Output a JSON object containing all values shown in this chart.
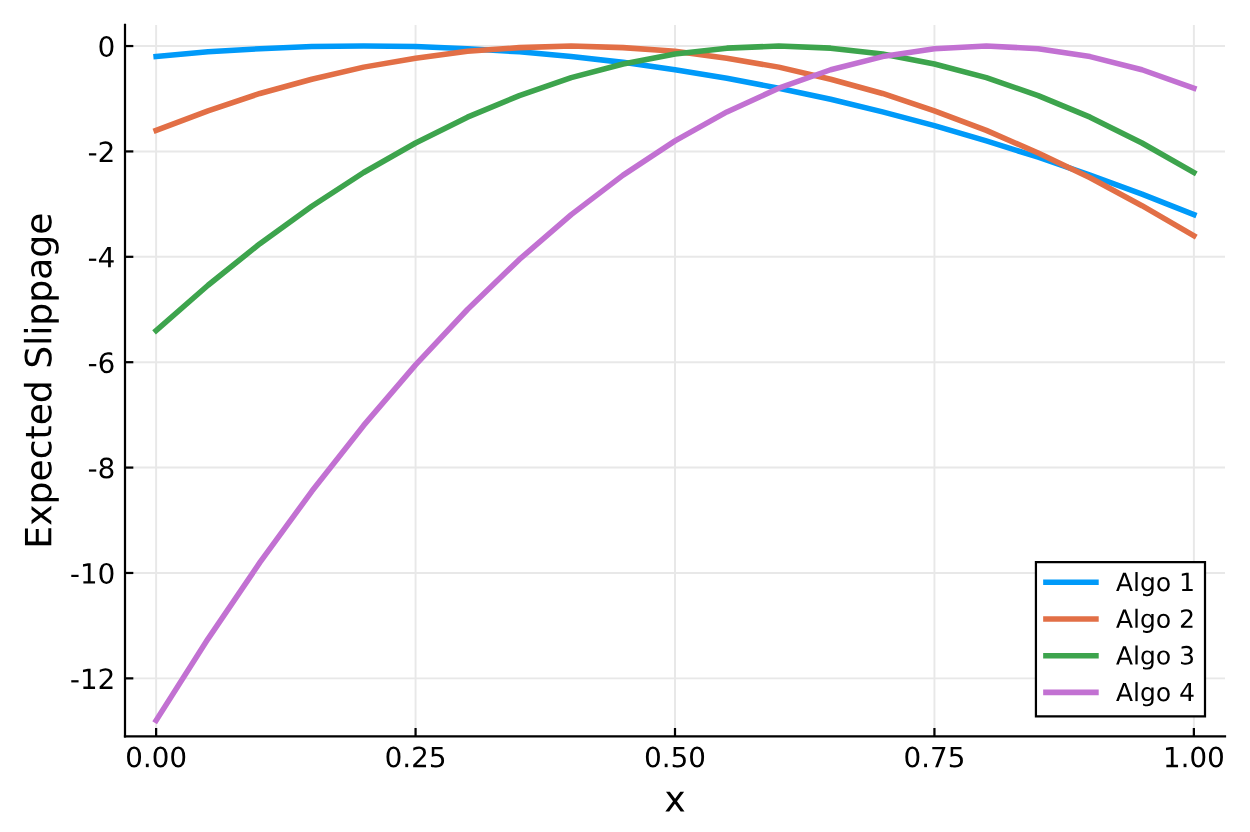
{
  "chart_data": {
    "type": "line",
    "xlabel": "x",
    "ylabel": "Expected Slippage",
    "x": [
      0,
      0.05,
      0.1,
      0.15,
      0.2,
      0.25,
      0.3,
      0.35,
      0.4,
      0.45,
      0.5,
      0.55,
      0.6,
      0.65,
      0.7,
      0.75,
      0.8,
      0.85,
      0.9,
      0.95,
      1
    ],
    "series": [
      {
        "name": "Algo 1",
        "color": "#009af9",
        "values": [
          -0.2,
          -0.11,
          -0.05,
          -0.01,
          0,
          -0.01,
          -0.05,
          -0.11,
          -0.2,
          -0.31,
          -0.45,
          -0.61,
          -0.8,
          -1.01,
          -1.25,
          -1.51,
          -1.8,
          -2.11,
          -2.45,
          -2.81,
          -3.2
        ]
      },
      {
        "name": "Algo 2",
        "color": "#e26f46",
        "values": [
          -1.6,
          -1.23,
          -0.9,
          -0.63,
          -0.4,
          -0.23,
          -0.1,
          -0.03,
          0,
          -0.03,
          -0.1,
          -0.23,
          -0.4,
          -0.63,
          -0.9,
          -1.23,
          -1.6,
          -2.03,
          -2.5,
          -3.03,
          -3.6
        ]
      },
      {
        "name": "Algo 3",
        "color": "#3da44d",
        "values": [
          -5.4,
          -4.54,
          -3.75,
          -3.04,
          -2.4,
          -1.84,
          -1.35,
          -0.94,
          -0.6,
          -0.34,
          -0.15,
          -0.04,
          0,
          -0.04,
          -0.15,
          -0.34,
          -0.6,
          -0.94,
          -1.35,
          -1.84,
          -2.4
        ]
      },
      {
        "name": "Algo 4",
        "color": "#c271d2",
        "values": [
          -12.8,
          -11.25,
          -9.8,
          -8.45,
          -7.2,
          -6.05,
          -5,
          -4.05,
          -3.2,
          -2.45,
          -1.8,
          -1.25,
          -0.8,
          -0.45,
          -0.2,
          -0.05,
          0,
          -0.05,
          -0.2,
          -0.45,
          -0.8
        ]
      }
    ],
    "xlim": [
      -0.03,
      1.03
    ],
    "ylim": [
      -13.1,
      0.4
    ],
    "xticks": [
      {
        "value": 0,
        "label": "0.00"
      },
      0.25,
      {
        "value": 0.5,
        "label": "0.50"
      },
      0.75,
      {
        "value": 1,
        "label": "1.00"
      }
    ],
    "yticks": [
      -12,
      -10,
      -8,
      -6,
      -4,
      -2,
      0
    ],
    "grid": true,
    "legend": "bottom right",
    "marker": "none",
    "line_style": "solid"
  }
}
